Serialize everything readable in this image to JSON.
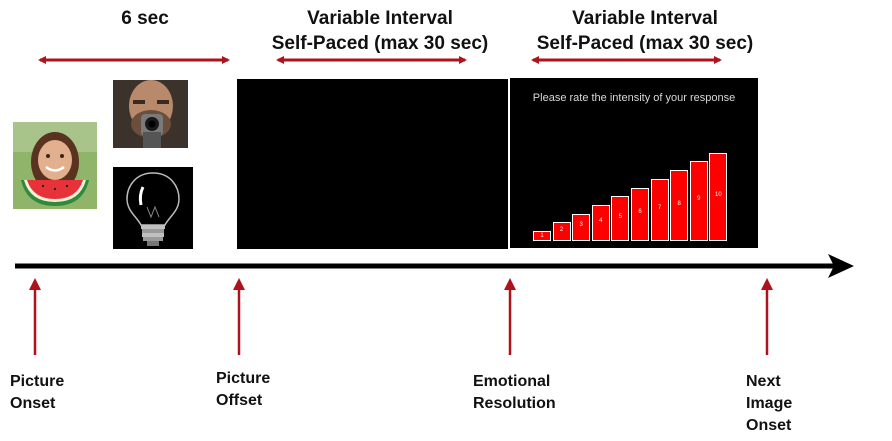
{
  "headers": {
    "phase1": "6 sec",
    "phase2_line1": "Variable Interval",
    "phase2_line2": "Self-Paced  (max 30 sec)",
    "phase3_line1": "Variable Interval",
    "phase3_line2": "Self-Paced (max 30 sec)"
  },
  "events": [
    {
      "line1": "Picture",
      "line2": "Onset",
      "line3": ""
    },
    {
      "line1": "Picture",
      "line2": "Offset",
      "line3": ""
    },
    {
      "line1": "Emotional",
      "line2": "Resolution",
      "line3": ""
    },
    {
      "line1": "Next",
      "line2": "Image",
      "line3": "Onset"
    }
  ],
  "rating_screen": {
    "prompt": "Please rate the intensity of your response",
    "scale": [
      "1",
      "2",
      "3",
      "4",
      "5",
      "6",
      "7",
      "8",
      "9",
      "10"
    ]
  },
  "colors": {
    "arrow_red": "#b0121b",
    "bar_red": "#ff0000",
    "timeline": "#000000"
  },
  "icons": [
    "girl-with-watermelon-photo",
    "man-with-gun-photo",
    "light-bulb-photo"
  ]
}
